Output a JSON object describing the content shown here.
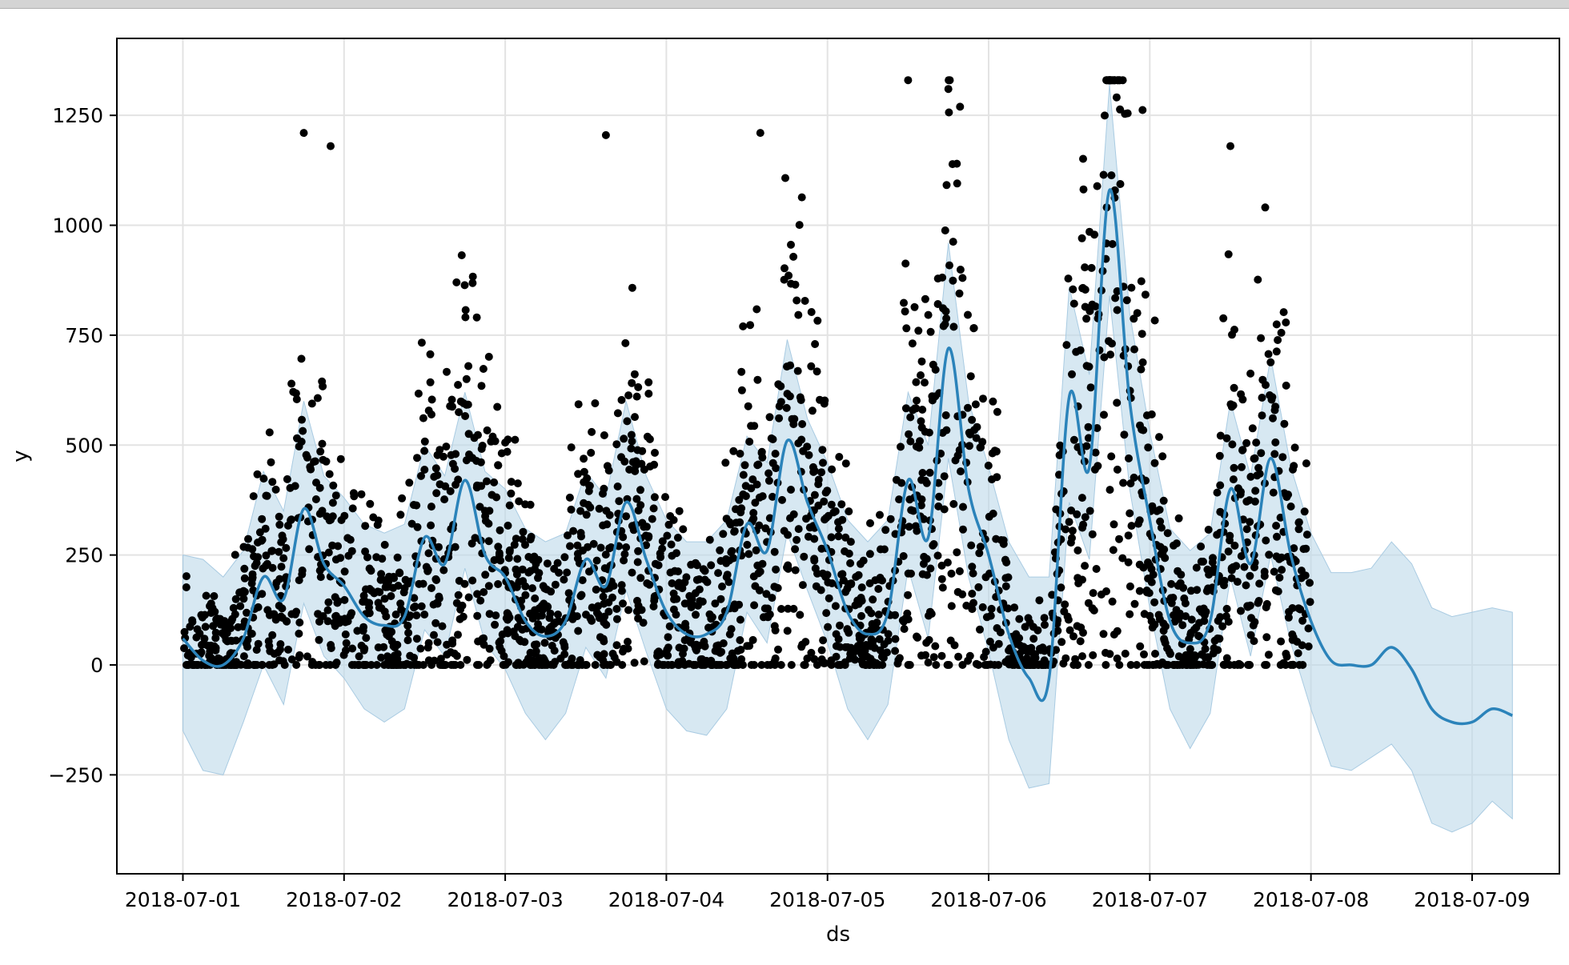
{
  "window": {
    "title": ""
  },
  "chart_data": {
    "type": "line",
    "title": "",
    "xlabel": "ds",
    "ylabel": "y",
    "xlim": [
      "2018-06-30T14:10",
      "2018-07-09T13:00"
    ],
    "ylim": [
      -475,
      1425
    ],
    "grid": true,
    "x_ticks": [
      "2018-07-01",
      "2018-07-02",
      "2018-07-03",
      "2018-07-04",
      "2018-07-05",
      "2018-07-06",
      "2018-07-07",
      "2018-07-08",
      "2018-07-09"
    ],
    "y_ticks": [
      -250,
      0,
      250,
      500,
      750,
      1000,
      1250
    ],
    "colors": {
      "forecast_line": "#2b83ba",
      "uncertainty_band": "#bcd8ea",
      "observations": "#000000",
      "grid": "#e3e3e3"
    },
    "series": [
      {
        "kind": "line",
        "x": [
          "2018-07-01T00:00",
          "2018-07-01T03:00",
          "2018-07-01T06:00",
          "2018-07-01T09:00",
          "2018-07-01T12:00",
          "2018-07-01T15:00",
          "2018-07-01T18:00",
          "2018-07-01T21:00",
          "2018-07-02T00:00",
          "2018-07-02T03:00",
          "2018-07-02T06:00",
          "2018-07-02T09:00",
          "2018-07-02T12:00",
          "2018-07-02T15:00",
          "2018-07-02T18:00",
          "2018-07-02T21:00",
          "2018-07-03T00:00",
          "2018-07-03T03:00",
          "2018-07-03T06:00",
          "2018-07-03T09:00",
          "2018-07-03T12:00",
          "2018-07-03T15:00",
          "2018-07-03T18:00",
          "2018-07-03T21:00",
          "2018-07-04T00:00",
          "2018-07-04T03:00",
          "2018-07-04T06:00",
          "2018-07-04T09:00",
          "2018-07-04T12:00",
          "2018-07-04T15:00",
          "2018-07-04T18:00",
          "2018-07-04T21:00",
          "2018-07-05T00:00",
          "2018-07-05T03:00",
          "2018-07-05T06:00",
          "2018-07-05T09:00",
          "2018-07-05T12:00",
          "2018-07-05T15:00",
          "2018-07-05T18:00",
          "2018-07-05T21:00",
          "2018-07-06T00:00",
          "2018-07-06T03:00",
          "2018-07-06T06:00",
          "2018-07-06T09:00",
          "2018-07-06T12:00",
          "2018-07-06T15:00",
          "2018-07-06T18:00",
          "2018-07-06T21:00",
          "2018-07-07T00:00",
          "2018-07-07T03:00",
          "2018-07-07T06:00",
          "2018-07-07T09:00",
          "2018-07-07T12:00",
          "2018-07-07T15:00",
          "2018-07-07T18:00",
          "2018-07-07T21:00",
          "2018-07-08T00:00",
          "2018-07-08T03:00",
          "2018-07-08T06:00",
          "2018-07-08T09:00",
          "2018-07-08T12:00",
          "2018-07-08T15:00",
          "2018-07-08T18:00",
          "2018-07-08T21:00",
          "2018-07-09T00:00",
          "2018-07-09T03:00",
          "2018-07-09T06:00"
        ],
        "y": [
          60,
          10,
          0,
          60,
          200,
          150,
          355,
          230,
          180,
          110,
          90,
          110,
          290,
          230,
          420,
          250,
          200,
          100,
          65,
          100,
          240,
          180,
          370,
          240,
          120,
          70,
          70,
          120,
          320,
          260,
          510,
          370,
          260,
          120,
          70,
          120,
          420,
          290,
          720,
          400,
          250,
          70,
          -30,
          -30,
          610,
          450,
          1080,
          600,
          330,
          100,
          50,
          100,
          400,
          230,
          470,
          250,
          100,
          10,
          0,
          0,
          40,
          -10,
          -100,
          -130,
          -130,
          -100,
          -115
        ]
      }
    ],
    "uncertainty_band": {
      "x": [
        "2018-07-01T00:00",
        "2018-07-01T03:00",
        "2018-07-01T06:00",
        "2018-07-01T09:00",
        "2018-07-01T12:00",
        "2018-07-01T15:00",
        "2018-07-01T18:00",
        "2018-07-01T21:00",
        "2018-07-02T00:00",
        "2018-07-02T03:00",
        "2018-07-02T06:00",
        "2018-07-02T09:00",
        "2018-07-02T12:00",
        "2018-07-02T15:00",
        "2018-07-02T18:00",
        "2018-07-02T21:00",
        "2018-07-03T00:00",
        "2018-07-03T03:00",
        "2018-07-03T06:00",
        "2018-07-03T09:00",
        "2018-07-03T12:00",
        "2018-07-03T15:00",
        "2018-07-03T18:00",
        "2018-07-03T21:00",
        "2018-07-04T00:00",
        "2018-07-04T03:00",
        "2018-07-04T06:00",
        "2018-07-04T09:00",
        "2018-07-04T12:00",
        "2018-07-04T15:00",
        "2018-07-04T18:00",
        "2018-07-04T21:00",
        "2018-07-05T00:00",
        "2018-07-05T03:00",
        "2018-07-05T06:00",
        "2018-07-05T09:00",
        "2018-07-05T12:00",
        "2018-07-05T15:00",
        "2018-07-05T18:00",
        "2018-07-05T21:00",
        "2018-07-06T00:00",
        "2018-07-06T03:00",
        "2018-07-06T06:00",
        "2018-07-06T09:00",
        "2018-07-06T12:00",
        "2018-07-06T15:00",
        "2018-07-06T18:00",
        "2018-07-06T21:00",
        "2018-07-07T00:00",
        "2018-07-07T03:00",
        "2018-07-07T06:00",
        "2018-07-07T09:00",
        "2018-07-07T12:00",
        "2018-07-07T15:00",
        "2018-07-07T18:00",
        "2018-07-07T21:00",
        "2018-07-08T00:00",
        "2018-07-08T03:00",
        "2018-07-08T06:00",
        "2018-07-08T09:00",
        "2018-07-08T12:00",
        "2018-07-08T15:00",
        "2018-07-08T18:00",
        "2018-07-08T21:00",
        "2018-07-09T00:00",
        "2018-07-09T03:00",
        "2018-07-09T06:00"
      ],
      "upper": [
        250,
        240,
        200,
        260,
        440,
        350,
        600,
        430,
        380,
        320,
        300,
        320,
        500,
        430,
        620,
        440,
        400,
        310,
        280,
        300,
        440,
        380,
        600,
        430,
        330,
        280,
        280,
        330,
        520,
        460,
        740,
        560,
        460,
        330,
        280,
        330,
        620,
        500,
        960,
        600,
        450,
        280,
        200,
        200,
        860,
        660,
        1320,
        800,
        530,
        310,
        260,
        300,
        600,
        430,
        700,
        450,
        300,
        210,
        210,
        220,
        280,
        230,
        130,
        110,
        120,
        130,
        120
      ],
      "lower": [
        -150,
        -240,
        -250,
        -130,
        0,
        -90,
        140,
        20,
        -30,
        -100,
        -130,
        -100,
        80,
        20,
        220,
        50,
        -10,
        -110,
        -170,
        -110,
        40,
        -30,
        170,
        30,
        -100,
        -150,
        -160,
        -100,
        120,
        50,
        300,
        170,
        50,
        -100,
        -170,
        -90,
        220,
        60,
        470,
        200,
        30,
        -170,
        -280,
        -270,
        370,
        240,
        840,
        400,
        130,
        -100,
        -190,
        -110,
        200,
        20,
        250,
        50,
        -100,
        -230,
        -240,
        -210,
        -180,
        -240,
        -360,
        -380,
        -360,
        -310,
        -350
      ]
    },
    "observations": {
      "x_range": [
        "2018-07-01T00:00",
        "2018-07-08T00:00"
      ],
      "kind": "scatter",
      "note_levels": "dense hourly observations following the forecast with wide spread; clipped at about 1330 on 2018-07-06",
      "peaks": [
        {
          "x": "2018-07-01T18:00",
          "y": 1210
        },
        {
          "x": "2018-07-01T22:00",
          "y": 1180
        },
        {
          "x": "2018-07-03T15:00",
          "y": 1205
        },
        {
          "x": "2018-07-04T14:00",
          "y": 1210
        },
        {
          "x": "2018-07-05T12:00",
          "y": 1330
        },
        {
          "x": "2018-07-05T18:00",
          "y": 1310
        },
        {
          "x": "2018-07-06T18:00",
          "y": 1330
        },
        {
          "x": "2018-07-07T12:00",
          "y": 1180
        }
      ]
    }
  }
}
